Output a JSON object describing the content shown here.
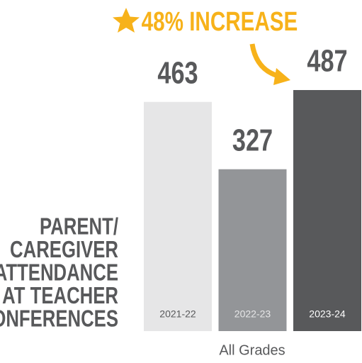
{
  "chart_data": {
    "type": "bar",
    "annotation": "48% INCREASE",
    "ylabel": [
      "PARENT/",
      "CAREGIVER",
      "ATTENDANCE",
      "AT TEACHER",
      "CONFERENCES"
    ],
    "xlabel": "All Grades",
    "categories": [
      "2021-22",
      "2022-23",
      "2023-24"
    ],
    "values": [
      463,
      327,
      487
    ],
    "colors": [
      "#e6e6e7",
      "#939598",
      "#58595b"
    ],
    "label_colors": [
      "#58595b",
      "#e6e6e7",
      "#ffffff"
    ],
    "annotation_color": "#f7b21a"
  }
}
